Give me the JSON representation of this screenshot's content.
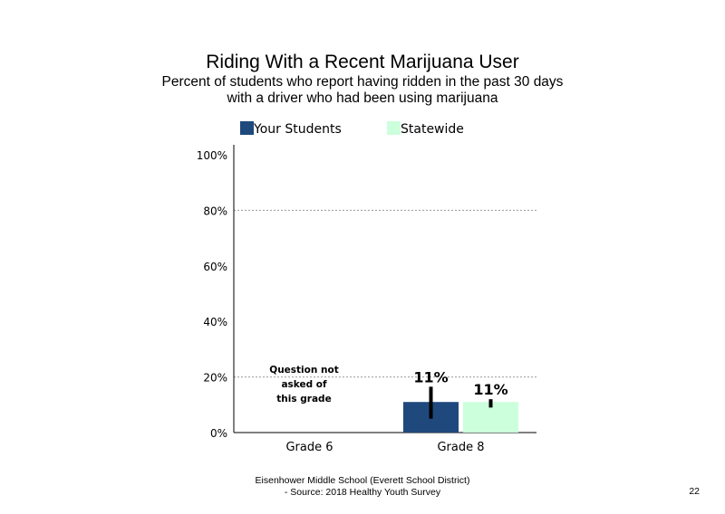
{
  "header": {
    "title": "Riding With a Recent Marijuana User",
    "subtitle_line1": "Percent of students who report having ridden in the past 30 days",
    "subtitle_line2": "with a driver who had been using marijuana"
  },
  "footer": {
    "line1": "Eisenhower Middle School (Everett School District)",
    "line2": "- Source: 2018 Healthy  Youth Survey",
    "page_number": "22"
  },
  "colors": {
    "your_students": "#1f497d",
    "statewide": "#ccffdc"
  },
  "chart_data": {
    "type": "bar",
    "categories": [
      "Grade 6",
      "Grade 8"
    ],
    "series": [
      {
        "name": "Your Students",
        "values": [
          null,
          11
        ],
        "labels": [
          "",
          "11%"
        ],
        "error_low": [
          null,
          5
        ],
        "error_high": [
          null,
          16.5
        ]
      },
      {
        "name": "Statewide",
        "values": [
          null,
          11
        ],
        "labels": [
          "",
          "11%"
        ],
        "error_low": [
          null,
          9
        ],
        "error_high": [
          null,
          12
        ]
      }
    ],
    "ylim": [
      0,
      100
    ],
    "yticks": [
      0,
      20,
      40,
      60,
      80,
      100
    ],
    "ytick_labels": [
      "0%",
      "20%",
      "40%",
      "60%",
      "80%",
      "100%"
    ],
    "grid": "dotted horizontal at 20% and 80%",
    "legend": "top",
    "note": {
      "category": "Grade 6",
      "lines": [
        "Question not",
        "asked of",
        "this grade"
      ]
    }
  }
}
